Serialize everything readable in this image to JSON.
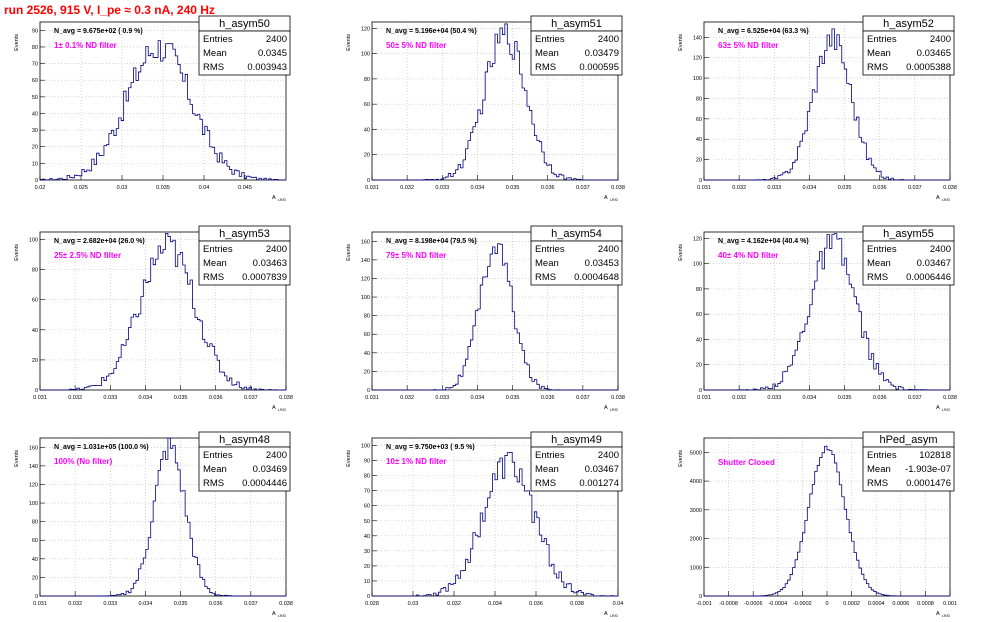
{
  "run_title": "run 2526,   915 V, I_pe ≈ 0.3 nA, 240 Hz",
  "colors": {
    "histogram": "#00007f",
    "annotation": "#ff00ff",
    "title": "#ff0000",
    "grid": "#bbbbbb"
  },
  "chart_data": [
    {
      "type": "histogram",
      "name": "h_asym50",
      "ylabel": "Events",
      "xlabel": "A",
      "navg": "N_avg = 9.675e+02 ( 0.9 %)",
      "label": "1± 0.1% ND filter",
      "stats": {
        "entries": "2400",
        "mean": "0.0345",
        "rms": "0.003943"
      },
      "xlim": [
        0.02,
        0.05
      ],
      "ylim": [
        0,
        95
      ],
      "xticks": [
        0.02,
        0.025,
        0.03,
        0.035,
        0.04,
        0.045
      ],
      "yticks": [
        0,
        10,
        20,
        30,
        40,
        50,
        60,
        70,
        80,
        90
      ],
      "mean": 0.0345,
      "sigma": 0.003943,
      "peak": 80
    },
    {
      "type": "histogram",
      "name": "h_asym51",
      "ylabel": "Events",
      "xlabel": "A",
      "navg": "N_avg = 5.196e+04 (50.4 %)",
      "label": "50± 5% ND filter",
      "stats": {
        "entries": "2400",
        "mean": "0.03479",
        "rms": "0.000595"
      },
      "xlim": [
        0.031,
        0.038
      ],
      "ylim": [
        0,
        125
      ],
      "xticks": [
        0.031,
        0.032,
        0.033,
        0.034,
        0.035,
        0.036,
        0.037,
        0.038
      ],
      "yticks": [
        0,
        20,
        40,
        60,
        80,
        100,
        120
      ],
      "mean": 0.03479,
      "sigma": 0.000595,
      "peak": 115
    },
    {
      "type": "histogram",
      "name": "h_asym52",
      "ylabel": "Events",
      "xlabel": "A",
      "navg": "N_avg = 6.525e+04 (63.3 %)",
      "label": "63± 5% ND filter",
      "stats": {
        "entries": "2400",
        "mean": "0.03465",
        "rms": "0.0005388"
      },
      "xlim": [
        0.031,
        0.038
      ],
      "ylim": [
        0,
        155
      ],
      "xticks": [
        0.031,
        0.032,
        0.033,
        0.034,
        0.035,
        0.036,
        0.037,
        0.038
      ],
      "yticks": [
        0,
        20,
        40,
        60,
        80,
        100,
        120,
        140
      ],
      "mean": 0.03465,
      "sigma": 0.0005388,
      "peak": 140
    },
    {
      "type": "histogram",
      "name": "h_asym53",
      "ylabel": "Events",
      "xlabel": "A",
      "navg": "N_avg = 2.682e+04 (26.0 %)",
      "label": "25± 2.5% ND filter",
      "stats": {
        "entries": "2400",
        "mean": "0.03463",
        "rms": "0.0007839"
      },
      "xlim": [
        0.031,
        0.038
      ],
      "ylim": [
        0,
        105
      ],
      "xticks": [
        0.031,
        0.032,
        0.033,
        0.034,
        0.035,
        0.036,
        0.037,
        0.038
      ],
      "yticks": [
        0,
        20,
        40,
        60,
        80,
        100
      ],
      "mean": 0.03463,
      "sigma": 0.0007839,
      "peak": 95
    },
    {
      "type": "histogram",
      "name": "h_asym54",
      "ylabel": "Events",
      "xlabel": "A",
      "navg": "N_avg = 8.198e+04 (79.5 %)",
      "label": "79± 5% ND filter",
      "stats": {
        "entries": "2400",
        "mean": "0.03453",
        "rms": "0.0004648"
      },
      "xlim": [
        0.031,
        0.038
      ],
      "ylim": [
        0,
        170
      ],
      "xticks": [
        0.031,
        0.032,
        0.033,
        0.034,
        0.035,
        0.036,
        0.037,
        0.038
      ],
      "yticks": [
        0,
        20,
        40,
        60,
        80,
        100,
        120,
        140,
        160
      ],
      "mean": 0.03453,
      "sigma": 0.0004648,
      "peak": 155
    },
    {
      "type": "histogram",
      "name": "h_asym55",
      "ylabel": "Events",
      "xlabel": "A",
      "navg": "N_avg = 4.162e+04 (40.4 %)",
      "label": "40± 4% ND filter",
      "stats": {
        "entries": "2400",
        "mean": "0.03467",
        "rms": "0.0006446"
      },
      "xlim": [
        0.031,
        0.038
      ],
      "ylim": [
        0,
        125
      ],
      "xticks": [
        0.031,
        0.032,
        0.033,
        0.034,
        0.035,
        0.036,
        0.037,
        0.038
      ],
      "yticks": [
        0,
        20,
        40,
        60,
        80,
        100,
        120
      ],
      "mean": 0.03467,
      "sigma": 0.0006446,
      "peak": 115
    },
    {
      "type": "histogram",
      "name": "h_asym48",
      "ylabel": "Events",
      "xlabel": "A",
      "navg": "N_avg = 1.031e+05 (100.0 %)",
      "label": "100% (No filter)",
      "stats": {
        "entries": "2400",
        "mean": "0.03469",
        "rms": "0.0004446"
      },
      "xlim": [
        0.031,
        0.038
      ],
      "ylim": [
        0,
        170
      ],
      "xticks": [
        0.031,
        0.032,
        0.033,
        0.034,
        0.035,
        0.036,
        0.037,
        0.038
      ],
      "yticks": [
        0,
        20,
        40,
        60,
        80,
        100,
        120,
        140,
        160
      ],
      "mean": 0.03469,
      "sigma": 0.0004446,
      "peak": 160
    },
    {
      "type": "histogram",
      "name": "h_asym49",
      "ylabel": "Events",
      "xlabel": "A",
      "navg": "N_avg = 9.750e+03 ( 9.5 %)",
      "label": "10± 1% ND filter",
      "stats": {
        "entries": "2400",
        "mean": "0.03467",
        "rms": "0.001274"
      },
      "xlim": [
        0.028,
        0.04
      ],
      "ylim": [
        0,
        105
      ],
      "xticks": [
        0.028,
        0.03,
        0.032,
        0.034,
        0.036,
        0.038,
        0.04
      ],
      "yticks": [
        0,
        10,
        20,
        30,
        40,
        50,
        60,
        70,
        80,
        90,
        100
      ],
      "mean": 0.03467,
      "sigma": 0.001274,
      "peak": 88
    },
    {
      "type": "histogram",
      "name": "hPed_asym",
      "ylabel": "Events",
      "xlabel": "A",
      "navg": "",
      "label": "Shutter Closed",
      "stats": {
        "entries": "102818",
        "mean": "-1.903e-07",
        "rms": "0.0001476"
      },
      "xlim": [
        -0.001,
        0.001
      ],
      "ylim": [
        0,
        5500
      ],
      "xticks": [
        -0.001,
        -0.0008,
        -0.0006,
        -0.0004,
        -0.0002,
        0,
        0.0002,
        0.0004,
        0.0006,
        0.0008,
        0.001
      ],
      "yticks": [
        0,
        1000,
        2000,
        3000,
        4000,
        5000
      ],
      "mean": 0,
      "sigma": 0.0001476,
      "peak": 5150
    }
  ]
}
